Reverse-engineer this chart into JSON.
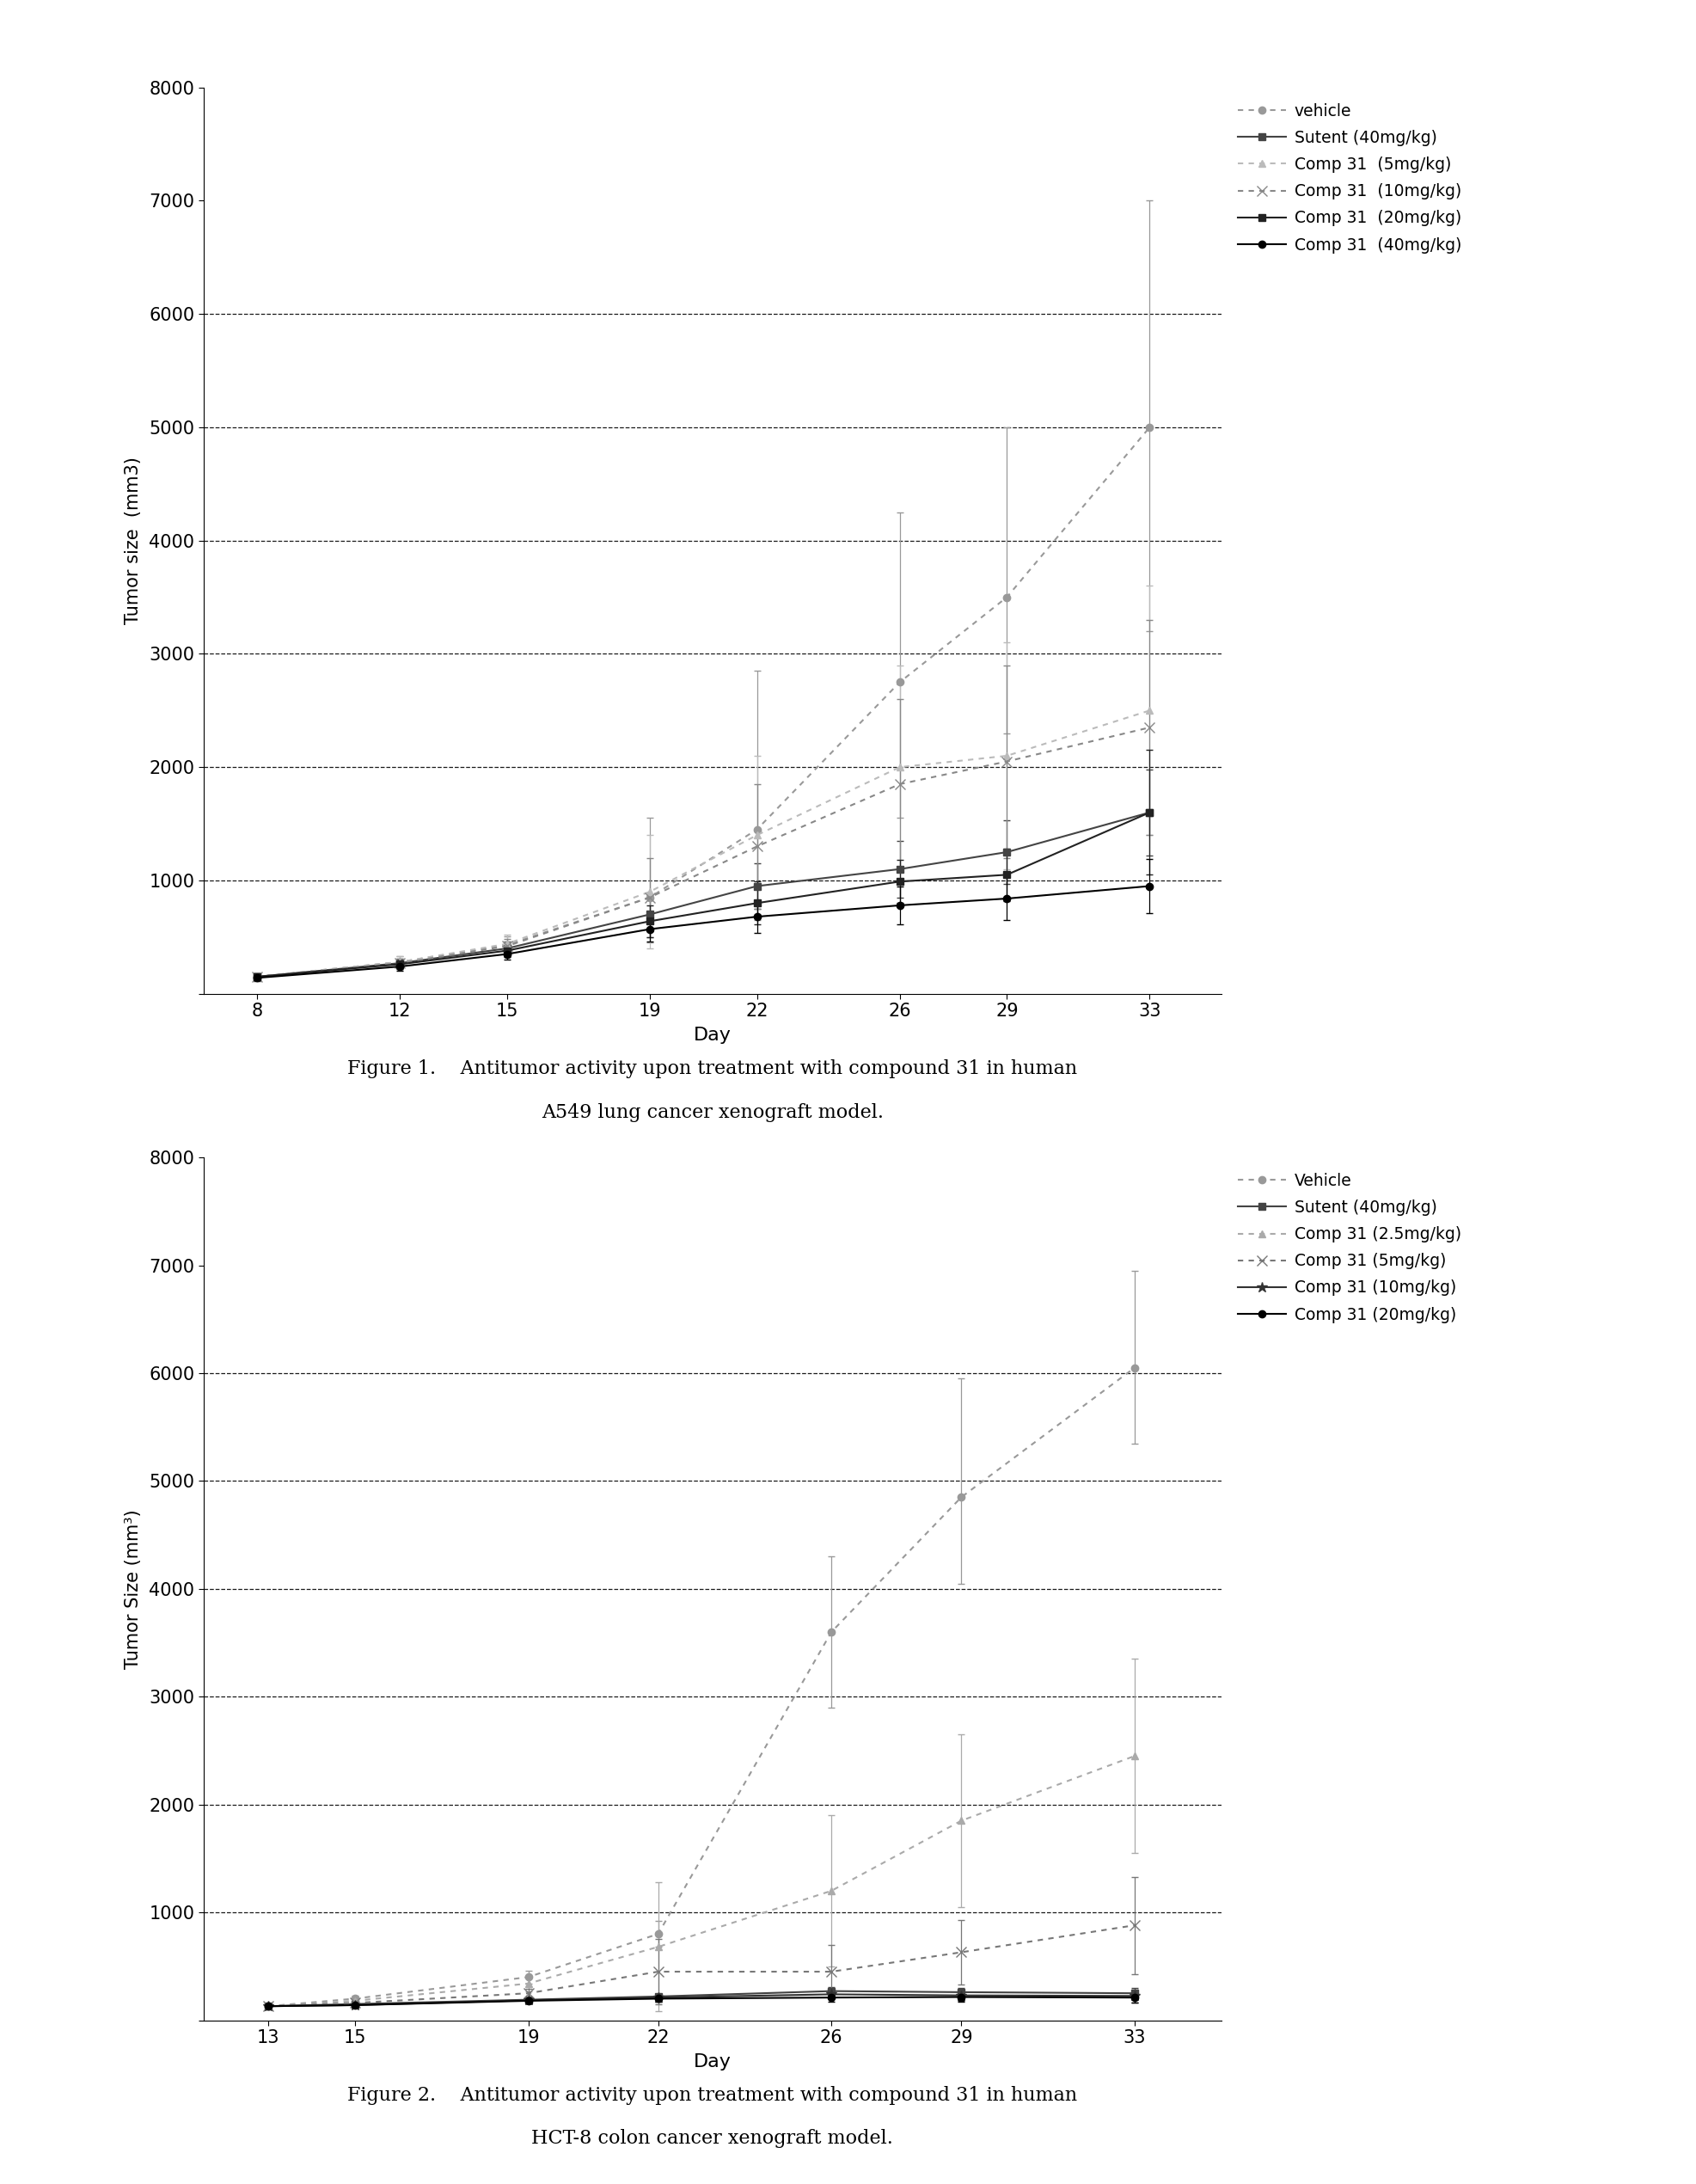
{
  "fig1": {
    "xlabel": "Day",
    "ylabel": "Tumor size  (mm3)",
    "days": [
      8,
      12,
      15,
      19,
      22,
      26,
      29,
      33
    ],
    "ylim": [
      0,
      8000
    ],
    "yticks": [
      0,
      1000,
      2000,
      3000,
      4000,
      5000,
      6000,
      7000,
      8000
    ],
    "grid_lines": [
      1000,
      2000,
      3000,
      4000,
      5000,
      6000
    ],
    "series": [
      {
        "label": "vehicle",
        "color": "#999999",
        "marker": "o",
        "linestyle": "dotted",
        "linewidth": 1.5,
        "markersize": 6,
        "values": [
          150,
          280,
          430,
          850,
          1450,
          2750,
          3500,
          5000
        ],
        "yerr_lo": [
          30,
          50,
          80,
          400,
          800,
          1200,
          1200,
          1800
        ],
        "yerr_hi": [
          30,
          50,
          80,
          700,
          1400,
          1500,
          1500,
          2000
        ]
      },
      {
        "label": "Sutent (40mg/kg)",
        "color": "#444444",
        "marker": "s",
        "linestyle": "solid",
        "linewidth": 1.5,
        "markersize": 6,
        "values": [
          150,
          270,
          400,
          700,
          950,
          1100,
          1250,
          1600
        ],
        "yerr_lo": [
          30,
          40,
          60,
          150,
          200,
          250,
          280,
          380
        ],
        "yerr_hi": [
          30,
          40,
          60,
          150,
          200,
          250,
          280,
          380
        ]
      },
      {
        "label": "Comp 31  (5mg/kg)",
        "color": "#bbbbbb",
        "marker": "^",
        "linestyle": "dotted",
        "linewidth": 1.5,
        "markersize": 6,
        "values": [
          150,
          280,
          440,
          900,
          1400,
          2000,
          2100,
          2500
        ],
        "yerr_lo": [
          30,
          50,
          80,
          500,
          700,
          900,
          1000,
          1100
        ],
        "yerr_hi": [
          30,
          50,
          80,
          500,
          700,
          900,
          1000,
          1100
        ]
      },
      {
        "label": "Comp 31  (10mg/kg)",
        "color": "#888888",
        "marker": "x",
        "linestyle": "dotted",
        "linewidth": 1.5,
        "markersize": 8,
        "values": [
          150,
          270,
          420,
          850,
          1300,
          1850,
          2050,
          2350
        ],
        "yerr_lo": [
          30,
          40,
          65,
          350,
          550,
          750,
          850,
          950
        ],
        "yerr_hi": [
          30,
          40,
          65,
          350,
          550,
          750,
          850,
          950
        ]
      },
      {
        "label": "Comp 31  (20mg/kg)",
        "color": "#222222",
        "marker": "s",
        "linestyle": "solid",
        "linewidth": 1.5,
        "markersize": 6,
        "values": [
          150,
          260,
          380,
          640,
          800,
          990,
          1050,
          1600
        ],
        "yerr_lo": [
          30,
          40,
          55,
          140,
          190,
          190,
          230,
          550
        ],
        "yerr_hi": [
          30,
          40,
          55,
          140,
          190,
          190,
          230,
          550
        ]
      },
      {
        "label": "Comp 31  (40mg/kg)",
        "color": "#000000",
        "marker": "o",
        "linestyle": "solid",
        "linewidth": 1.5,
        "markersize": 6,
        "values": [
          140,
          240,
          350,
          570,
          680,
          780,
          840,
          950
        ],
        "yerr_lo": [
          25,
          35,
          45,
          110,
          140,
          170,
          190,
          240
        ],
        "yerr_hi": [
          25,
          35,
          45,
          110,
          140,
          170,
          190,
          240
        ]
      }
    ],
    "caption_line1": "Figure 1.    Antitumor activity upon treatment with compound 31 in human",
    "caption_line2": "A549 lung cancer xenograft model."
  },
  "fig2": {
    "xlabel": "Day",
    "ylabel": "Tumor Size (mm³)",
    "days": [
      13,
      15,
      19,
      22,
      26,
      29,
      33
    ],
    "ylim": [
      0,
      8000
    ],
    "yticks": [
      0,
      1000,
      2000,
      3000,
      4000,
      5000,
      6000,
      7000,
      8000
    ],
    "grid_lines": [
      1000,
      2000,
      3000,
      4000,
      5000,
      6000
    ],
    "series": [
      {
        "label": "Vehicle",
        "color": "#999999",
        "marker": "o",
        "linestyle": "dotted",
        "linewidth": 1.5,
        "markersize": 6,
        "values": [
          130,
          200,
          400,
          800,
          3600,
          4850,
          6050
        ],
        "yerr_lo": [
          20,
          30,
          60,
          120,
          700,
          800,
          700
        ],
        "yerr_hi": [
          20,
          30,
          60,
          120,
          700,
          1100,
          900
        ]
      },
      {
        "label": "Sutent (40mg/kg)",
        "color": "#444444",
        "marker": "s",
        "linestyle": "solid",
        "linewidth": 1.5,
        "markersize": 6,
        "values": [
          130,
          150,
          190,
          220,
          270,
          260,
          250
        ],
        "yerr_lo": [
          15,
          15,
          25,
          25,
          35,
          40,
          50
        ],
        "yerr_hi": [
          15,
          15,
          25,
          25,
          35,
          40,
          50
        ]
      },
      {
        "label": "Comp 31 (2.5mg/kg)",
        "color": "#aaaaaa",
        "marker": "^",
        "linestyle": "dotted",
        "linewidth": 1.5,
        "markersize": 6,
        "values": [
          130,
          180,
          340,
          680,
          1200,
          1850,
          2450
        ],
        "yerr_lo": [
          20,
          25,
          70,
          600,
          700,
          800,
          900
        ],
        "yerr_hi": [
          20,
          25,
          70,
          600,
          700,
          800,
          900
        ]
      },
      {
        "label": "Comp 31 (5mg/kg)",
        "color": "#777777",
        "marker": "x",
        "linestyle": "dotted",
        "linewidth": 1.5,
        "markersize": 8,
        "values": [
          130,
          160,
          250,
          450,
          450,
          630,
          880
        ],
        "yerr_lo": [
          15,
          20,
          45,
          300,
          250,
          300,
          450
        ],
        "yerr_hi": [
          15,
          20,
          45,
          300,
          250,
          300,
          450
        ]
      },
      {
        "label": "Comp 31 (10mg/kg)",
        "color": "#333333",
        "marker": "*",
        "linestyle": "solid",
        "linewidth": 1.5,
        "markersize": 9,
        "values": [
          130,
          140,
          185,
          210,
          240,
          230,
          225
        ],
        "yerr_lo": [
          15,
          15,
          25,
          35,
          40,
          50,
          60
        ],
        "yerr_hi": [
          15,
          15,
          25,
          35,
          40,
          50,
          60
        ]
      },
      {
        "label": "Comp 31 (20mg/kg)",
        "color": "#000000",
        "marker": "o",
        "linestyle": "solid",
        "linewidth": 1.5,
        "markersize": 6,
        "values": [
          130,
          140,
          180,
          200,
          210,
          215,
          210
        ],
        "yerr_lo": [
          15,
          15,
          25,
          30,
          35,
          40,
          45
        ],
        "yerr_hi": [
          15,
          15,
          25,
          30,
          35,
          40,
          45
        ]
      }
    ],
    "caption_line1": "Figure 2.    Antitumor activity upon treatment with compound 31 in human",
    "caption_line2": "HCT-8 colon cancer xenograft model."
  }
}
